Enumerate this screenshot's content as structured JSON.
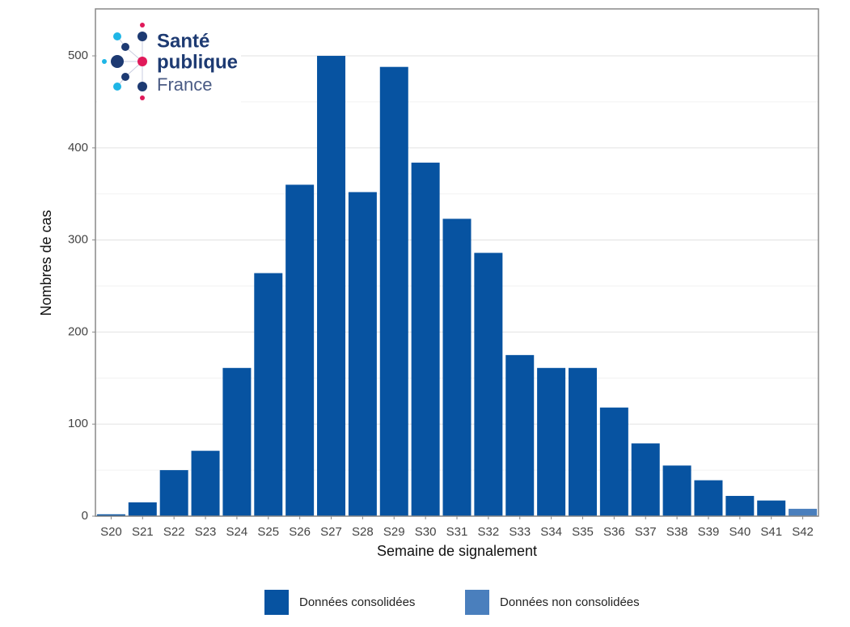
{
  "logo": {
    "line1": "Santé",
    "line2": "publique",
    "line3": "France"
  },
  "chart_data": {
    "type": "bar",
    "x_label": "Semaine de signalement",
    "y_label": "Nombres de cas",
    "categories": [
      "S20",
      "S21",
      "S22",
      "S23",
      "S24",
      "S25",
      "S26",
      "S27",
      "S28",
      "S29",
      "S30",
      "S31",
      "S32",
      "S33",
      "S34",
      "S35",
      "S36",
      "S37",
      "S38",
      "S39",
      "S40",
      "S41",
      "S42"
    ],
    "series": [
      {
        "name": "Données consolidées",
        "color": "#0753a1",
        "values": [
          2,
          15,
          50,
          71,
          161,
          264,
          360,
          500,
          352,
          488,
          384,
          323,
          286,
          175,
          161,
          161,
          118,
          79,
          55,
          39,
          22,
          17,
          null
        ]
      },
      {
        "name": "Données non consolidées",
        "color": "#4a7fbd",
        "values": [
          null,
          null,
          null,
          null,
          null,
          null,
          null,
          null,
          null,
          null,
          null,
          null,
          null,
          null,
          null,
          null,
          null,
          null,
          null,
          null,
          null,
          null,
          8
        ]
      }
    ],
    "ylim": [
      0,
      551
    ],
    "yticks": [
      0,
      100,
      200,
      300,
      400,
      500
    ],
    "minor_yticks": [
      50,
      150,
      250,
      350,
      450
    ],
    "grid": true,
    "legend": "bottom"
  }
}
